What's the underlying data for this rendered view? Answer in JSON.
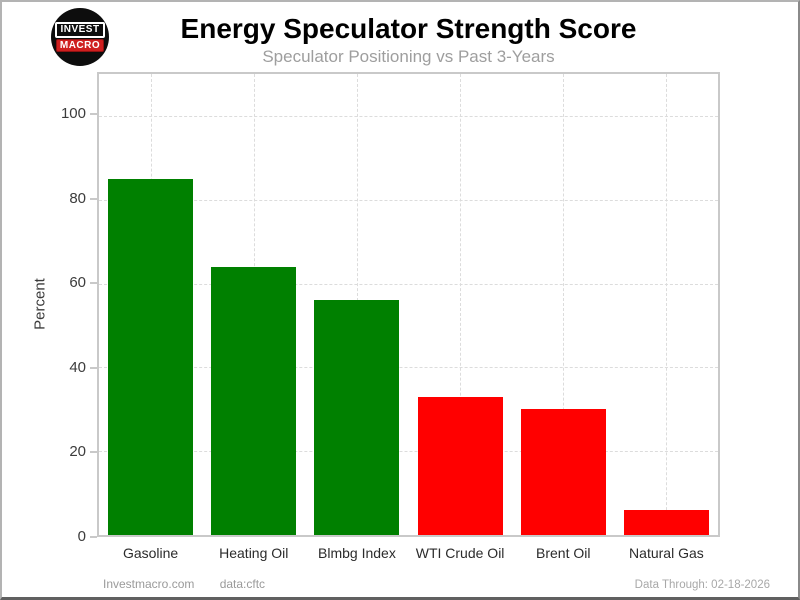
{
  "logo": {
    "line1": "INVEST",
    "line2": "MACRO"
  },
  "header": {
    "title": "Energy Speculator Strength Score",
    "subtitle": "Speculator Positioning vs Past 3-Years"
  },
  "chart_data": {
    "type": "bar",
    "categories": [
      "Gasoline",
      "Heating Oil",
      "Blmbg Index",
      "WTI Crude Oil",
      "Brent Oil",
      "Natural Gas"
    ],
    "values": [
      85,
      64,
      56,
      33,
      30,
      6
    ],
    "bar_colors": [
      "#008000",
      "#008000",
      "#008000",
      "#ff0000",
      "#ff0000",
      "#ff0000"
    ],
    "title": "Energy Speculator Strength Score",
    "subtitle": "Speculator Positioning vs Past 3-Years",
    "xlabel": "",
    "ylabel": "Percent",
    "ylim": [
      0,
      110
    ],
    "yticks": [
      0,
      20,
      40,
      60,
      80,
      100
    ],
    "grid": true,
    "grid_style": "dashed",
    "legend": false
  },
  "colors": {
    "positive_bar": "#008000",
    "negative_bar": "#ff0000",
    "grid": "#dcdcdc",
    "plot_border": "#c9c9c9",
    "subtitle_text": "#9e9e9e",
    "footer_text": "#9a9a9a",
    "logo_red": "#cf1f1f"
  },
  "footer": {
    "site": "Investmacro.com",
    "source": "data:cftc",
    "data_through": "Data Through: 02-18-2026"
  }
}
